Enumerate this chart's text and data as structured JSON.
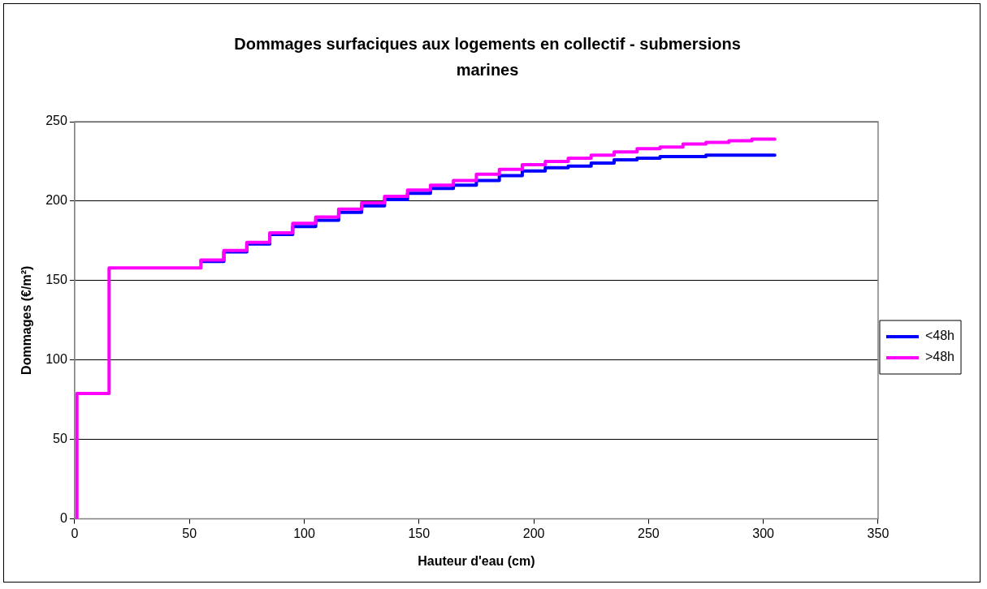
{
  "chart_data": {
    "type": "step",
    "title": "Dommages surfaciques aux logements en collectif - submersions marines",
    "xlabel": "Hauteur d'eau (cm)",
    "ylabel": "Dommages (€/m²)",
    "x": [
      1,
      1,
      15,
      55,
      65,
      75,
      85,
      95,
      105,
      115,
      125,
      135,
      145,
      155,
      165,
      175,
      185,
      195,
      205,
      215,
      225,
      235,
      245,
      255,
      265,
      275,
      285,
      295,
      305
    ],
    "series": [
      {
        "name": "<48h",
        "color": "#0000ff",
        "values": [
          null,
          null,
          null,
          162,
          168,
          173,
          179,
          184,
          188,
          193,
          197,
          201,
          205,
          208,
          210,
          213,
          216,
          219,
          221,
          222,
          224,
          226,
          227,
          228,
          228,
          229,
          229,
          229,
          229
        ]
      },
      {
        "name": ">48h",
        "color": "#ff00ff",
        "values": [
          0,
          79,
          158,
          163,
          169,
          174,
          180,
          186,
          190,
          195,
          199,
          203,
          207,
          210,
          213,
          217,
          220,
          223,
          225,
          227,
          229,
          231,
          233,
          234,
          236,
          237,
          238,
          239,
          239
        ]
      }
    ],
    "xlim": [
      0,
      350
    ],
    "xticks": [
      0,
      50,
      100,
      150,
      200,
      250,
      300,
      350
    ],
    "ylim": [
      0,
      250
    ],
    "yticks": [
      0,
      50,
      100,
      150,
      200,
      250
    ],
    "grid": "y",
    "legend": "right",
    "line_style": "solid",
    "marker": "none"
  }
}
